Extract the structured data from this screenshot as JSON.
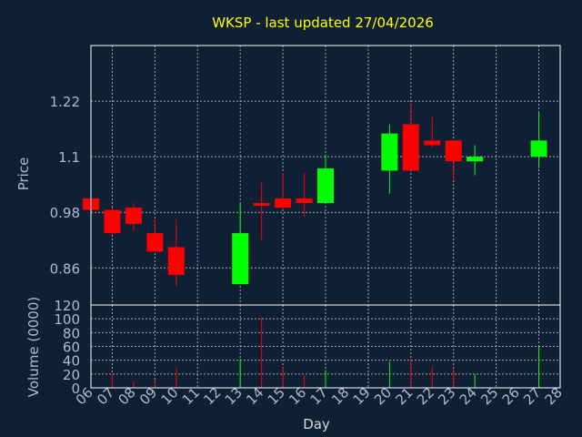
{
  "chart_data": {
    "type": "candlestick",
    "title": "WKSP - last updated 27/04/2026",
    "xlabel": "Day",
    "price_axis": {
      "label": "Price",
      "ticks": [
        "0.86",
        "0.98",
        "1.1",
        "1.22"
      ],
      "tick_values": [
        0.86,
        0.98,
        1.1,
        1.22
      ],
      "ylim": [
        0.78,
        1.34
      ]
    },
    "volume_axis": {
      "label": "Volume (0000)",
      "ticks": [
        "0",
        "20",
        "40",
        "60",
        "80",
        "100",
        "120"
      ],
      "tick_values": [
        0,
        20,
        40,
        60,
        80,
        100,
        120
      ],
      "ylim": [
        0,
        120
      ]
    },
    "days": [
      "06",
      "07",
      "08",
      "09",
      "10",
      "11",
      "12",
      "13",
      "14",
      "15",
      "16",
      "17",
      "18",
      "19",
      "20",
      "21",
      "22",
      "23",
      "24",
      "25",
      "26",
      "27",
      "28"
    ],
    "candles": [
      {
        "day": "06",
        "open": 1.01,
        "high": 1.01,
        "low": 0.98,
        "close": 0.985,
        "volume": 0
      },
      {
        "day": "07",
        "open": 0.985,
        "high": 0.99,
        "low": 0.93,
        "close": 0.935,
        "volume": 20
      },
      {
        "day": "08",
        "open": 0.99,
        "high": 1.0,
        "low": 0.94,
        "close": 0.955,
        "volume": 10
      },
      {
        "day": "09",
        "open": 0.935,
        "high": 0.965,
        "low": 0.895,
        "close": 0.895,
        "volume": 12
      },
      {
        "day": "10",
        "open": 0.905,
        "high": 0.965,
        "low": 0.82,
        "close": 0.845,
        "volume": 30
      },
      {
        "day": "13",
        "open": 0.825,
        "high": 1.0,
        "low": 0.825,
        "close": 0.935,
        "volume": 42
      },
      {
        "day": "14",
        "open": 1.0,
        "high": 1.045,
        "low": 0.92,
        "close": 0.995,
        "volume": 102
      },
      {
        "day": "15",
        "open": 1.01,
        "high": 1.065,
        "low": 0.985,
        "close": 0.99,
        "volume": 30
      },
      {
        "day": "16",
        "open": 1.01,
        "high": 1.065,
        "low": 0.97,
        "close": 1.0,
        "volume": 18
      },
      {
        "day": "17",
        "open": 1.0,
        "high": 1.105,
        "low": 1.0,
        "close": 1.075,
        "volume": 26
      },
      {
        "day": "20",
        "open": 1.07,
        "high": 1.17,
        "low": 1.02,
        "close": 1.15,
        "volume": 38
      },
      {
        "day": "21",
        "open": 1.17,
        "high": 1.215,
        "low": 1.07,
        "close": 1.07,
        "volume": 42
      },
      {
        "day": "22",
        "open": 1.135,
        "high": 1.185,
        "low": 1.12,
        "close": 1.125,
        "volume": 30
      },
      {
        "day": "23",
        "open": 1.135,
        "high": 1.135,
        "low": 1.05,
        "close": 1.09,
        "volume": 28
      },
      {
        "day": "24",
        "open": 1.09,
        "high": 1.125,
        "low": 1.06,
        "close": 1.1,
        "volume": 20
      },
      {
        "day": "27",
        "open": 1.1,
        "high": 1.195,
        "low": 1.075,
        "close": 1.135,
        "volume": 60
      }
    ],
    "grid": true,
    "colors": {
      "background": "#0f2035",
      "up": "#00ff00",
      "down": "#ff0000",
      "grid": "#c8c8c8",
      "title": "#ffff00",
      "axis_text": "#aabbd8",
      "day_text": "#d9d9d9",
      "axis_line": "#ffffff"
    }
  }
}
